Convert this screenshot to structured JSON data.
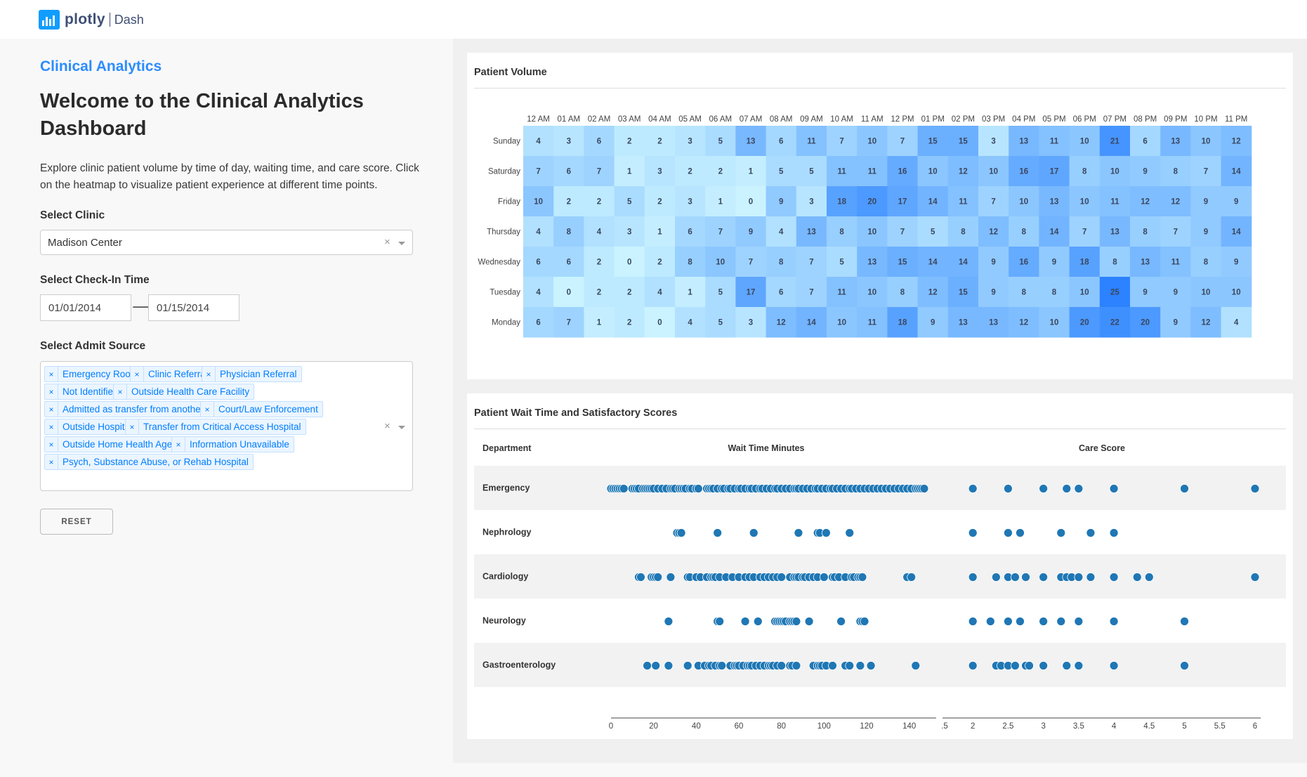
{
  "banner": {
    "logo_word": "plotly",
    "logo_product": "Dash"
  },
  "sidebar": {
    "app_name": "Clinical Analytics",
    "welcome": "Welcome to the Clinical Analytics Dashboard",
    "intro": "Explore clinic patient volume by time of day, waiting time, and care score. Click on the heatmap to visualize patient experience at different time points.",
    "clinic_label": "Select Clinic",
    "clinic_value": "Madison Center",
    "checkin_label": "Select Check-In Time",
    "date_start": "01/01/2014",
    "date_end": "01/15/2014",
    "admit_label": "Select Admit Source",
    "admit_sources": [
      "Emergency Room",
      "Clinic Referral",
      "Physician Referral",
      "Not Identified",
      "Outside Health Care Facility",
      "Admitted as transfer from another unit",
      "Court/Law Enforcement",
      "Outside Hospital",
      "Transfer from Critical Access Hospital",
      "Outside Home Health Agency",
      "Information Unavailable",
      "Psych, Substance Abuse, or Rehab Hospital"
    ],
    "reset_label": "RESET",
    "clear_glyph": "×",
    "tag_remove_glyph": "×"
  },
  "volume_card": {
    "title": "Patient Volume"
  },
  "wait_card": {
    "title": "Patient Wait Time and Satisfactory Scores",
    "header_department": "Department",
    "header_wait": "Wait Time Minutes",
    "header_care": "Care Score"
  },
  "chart_data": [
    {
      "type": "heatmap",
      "title": "Patient Volume",
      "colors": {
        "low": "#caf3ff",
        "high": "#2c82ff"
      },
      "x": [
        "12 AM",
        "01 AM",
        "02 AM",
        "03 AM",
        "04 AM",
        "05 AM",
        "06 AM",
        "07 AM",
        "08 AM",
        "09 AM",
        "10 AM",
        "11 AM",
        "12 PM",
        "01 PM",
        "02 PM",
        "03 PM",
        "04 PM",
        "05 PM",
        "06 PM",
        "07 PM",
        "08 PM",
        "09 PM",
        "10 PM",
        "11 PM"
      ],
      "y": [
        "Sunday",
        "Saturday",
        "Friday",
        "Thursday",
        "Wednesday",
        "Tuesday",
        "Monday"
      ],
      "z": [
        [
          4,
          3,
          6,
          2,
          2,
          3,
          5,
          13,
          6,
          11,
          7,
          10,
          7,
          15,
          15,
          3,
          13,
          11,
          10,
          21,
          6,
          13,
          10,
          12
        ],
        [
          7,
          6,
          7,
          1,
          3,
          2,
          2,
          1,
          5,
          5,
          11,
          11,
          16,
          10,
          12,
          10,
          16,
          17,
          8,
          10,
          9,
          8,
          7,
          14
        ],
        [
          10,
          2,
          2,
          5,
          2,
          3,
          1,
          0,
          9,
          3,
          18,
          20,
          17,
          14,
          11,
          7,
          10,
          13,
          10,
          11,
          12,
          12,
          9,
          9
        ],
        [
          4,
          8,
          4,
          3,
          1,
          6,
          7,
          9,
          4,
          13,
          8,
          10,
          7,
          5,
          8,
          12,
          8,
          14,
          7,
          13,
          8,
          7,
          9,
          14
        ],
        [
          6,
          6,
          2,
          0,
          2,
          8,
          10,
          7,
          8,
          7,
          5,
          13,
          15,
          14,
          14,
          9,
          16,
          9,
          18,
          8,
          13,
          11,
          8,
          9
        ],
        [
          4,
          0,
          2,
          2,
          4,
          1,
          5,
          17,
          6,
          7,
          11,
          10,
          8,
          12,
          15,
          9,
          8,
          8,
          10,
          25,
          9,
          9,
          10,
          10
        ],
        [
          6,
          7,
          1,
          2,
          0,
          4,
          5,
          3,
          12,
          14,
          10,
          11,
          18,
          9,
          13,
          13,
          12,
          10,
          20,
          22,
          20,
          9,
          12,
          4
        ]
      ]
    },
    {
      "type": "scatter",
      "title": "Patient Wait Time and Satisfactory Scores",
      "marker_color": "#1f77b4",
      "departments": [
        "Emergency",
        "Nephrology",
        "Cardiology",
        "Neurology",
        "Gastroenterology"
      ],
      "wait_time": {
        "xlabel": "Wait Time Minutes",
        "xlim": [
          0,
          150
        ],
        "ticks": [
          0,
          20,
          40,
          60,
          80,
          100,
          120,
          140
        ],
        "values": [
          [
            0,
            1,
            2,
            3,
            4,
            5,
            6,
            10,
            11,
            12,
            13,
            15,
            16,
            17,
            18,
            19,
            20,
            22,
            24,
            26,
            28,
            29,
            30,
            32,
            33,
            34,
            35,
            37,
            38,
            40,
            41,
            45,
            46,
            47,
            48,
            50,
            52,
            53,
            55,
            56,
            58,
            60,
            61,
            63,
            65,
            66,
            68,
            70,
            71,
            73,
            75,
            77,
            78,
            80,
            82,
            84,
            86,
            87,
            88,
            90,
            92,
            94,
            96,
            97,
            99,
            101,
            103,
            104,
            106,
            108,
            110,
            112,
            113,
            115,
            117,
            119,
            121,
            123,
            125,
            127,
            129,
            131,
            133,
            135,
            137,
            139,
            141,
            143,
            144,
            145,
            146,
            147
          ],
          [
            31,
            32,
            33,
            50,
            67,
            88,
            97,
            98,
            101,
            112
          ],
          [
            13,
            14,
            19,
            20,
            21,
            22,
            28,
            36,
            37,
            40,
            42,
            45,
            47,
            48,
            49,
            51,
            54,
            57,
            60,
            63,
            65,
            67,
            70,
            72,
            74,
            76,
            78,
            80,
            84,
            86,
            87,
            88,
            90,
            91,
            93,
            95,
            97,
            100,
            104,
            105,
            107,
            110,
            113,
            114,
            116,
            117,
            118,
            139,
            141
          ],
          [
            27,
            50,
            51,
            63,
            69,
            77,
            78,
            79,
            80,
            81,
            82,
            84,
            85,
            86,
            87,
            93,
            108,
            117,
            118,
            119
          ],
          [
            17,
            21,
            27,
            36,
            41,
            44,
            46,
            47,
            49,
            51,
            52,
            56,
            58,
            59,
            60,
            62,
            64,
            65,
            66,
            68,
            70,
            72,
            74,
            75,
            76,
            78,
            80,
            84,
            85,
            87,
            95,
            97,
            98,
            99,
            101,
            104,
            110,
            112,
            117,
            122,
            143
          ]
        ]
      },
      "care_score": {
        "xlabel": "Care Score",
        "xlim": [
          1.55,
          6.05
        ],
        "ticks": [
          ".5",
          "2",
          "2.5",
          "3",
          "3.5",
          "4",
          "4.5",
          "5",
          "5.5",
          "6"
        ],
        "values": [
          [
            2,
            2.5,
            3,
            3.33,
            3.5,
            4,
            5,
            6
          ],
          [
            2,
            2.5,
            2.67,
            3.25,
            3.67,
            4
          ],
          [
            2,
            2.33,
            2.5,
            2.6,
            2.75,
            3,
            3.25,
            3.33,
            3.4,
            3.5,
            3.67,
            4,
            4.33,
            4.5,
            6
          ],
          [
            2,
            2.25,
            2.5,
            2.67,
            3,
            3.25,
            3.5,
            4,
            5
          ],
          [
            2,
            2.33,
            2.4,
            2.5,
            2.6,
            2.75,
            2.8,
            3,
            3.33,
            3.5,
            4,
            5
          ]
        ]
      }
    }
  ]
}
